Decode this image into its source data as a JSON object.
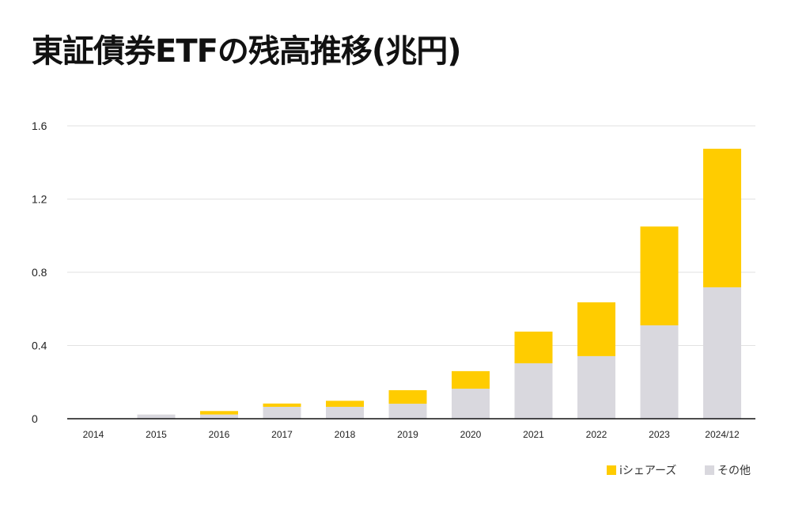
{
  "chart_data": {
    "type": "bar",
    "stacked": true,
    "title": "東証債券ETFの残高推移(兆円)",
    "xlabel": "",
    "ylabel": "",
    "ylim": [
      0,
      1.6
    ],
    "yticks": [
      "0",
      "0.4",
      "0.8",
      "1.2",
      "1.6"
    ],
    "grid": true,
    "legend_position": "bottom-right",
    "categories": [
      "2014",
      "2015",
      "2016",
      "2017",
      "2018",
      "2019",
      "2020",
      "2021",
      "2022",
      "2023",
      "2024/12"
    ],
    "series": [
      {
        "name": "その他",
        "color": "#d9d8de",
        "values": [
          0,
          0.023,
          0.023,
          0.065,
          0.065,
          0.082,
          0.164,
          0.303,
          0.342,
          0.51,
          0.718
        ]
      },
      {
        "name": "iシェアーズ",
        "color": "#ffcc00",
        "values": [
          0,
          0,
          0.019,
          0.018,
          0.033,
          0.074,
          0.096,
          0.173,
          0.294,
          0.54,
          0.757
        ]
      }
    ]
  }
}
